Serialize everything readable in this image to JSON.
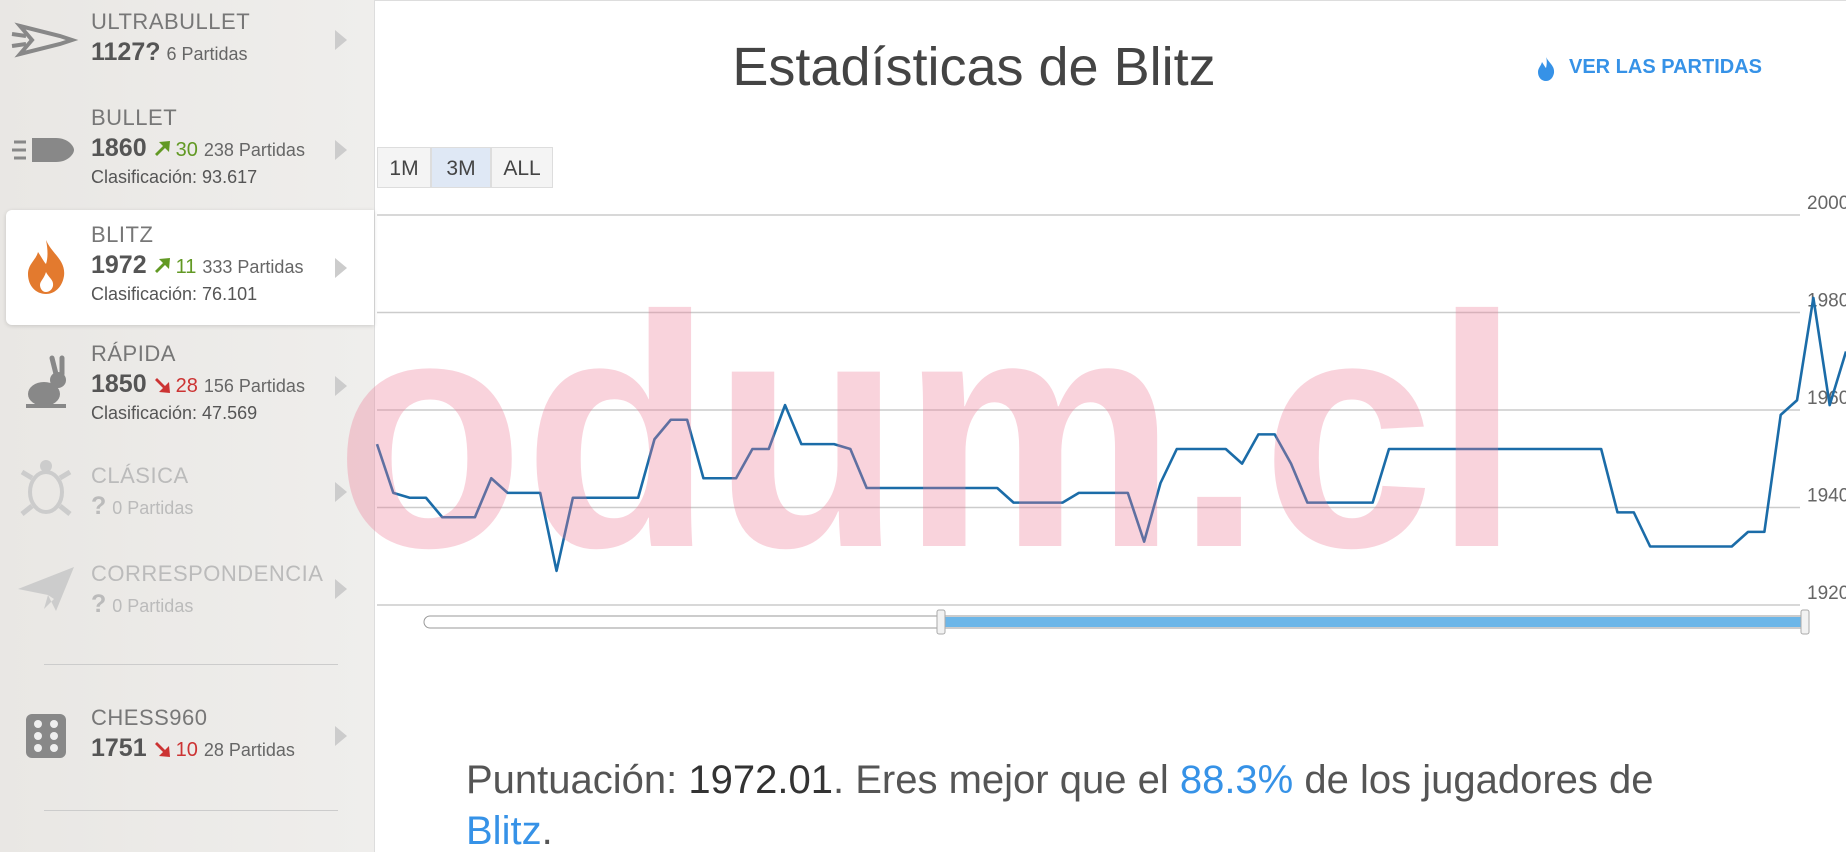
{
  "sidebar": {
    "items": [
      {
        "name": "ULTRABULLET",
        "rating": "1127?",
        "games": "6 Partidas"
      },
      {
        "name": "BULLET",
        "rating": "1860",
        "change": "30",
        "trend": "up",
        "games": "238 Partidas",
        "ranking": "Clasificación: 93.617"
      },
      {
        "name": "BLITZ",
        "rating": "1972",
        "change": "11",
        "trend": "up",
        "games": "333 Partidas",
        "ranking": "Clasificación: 76.101",
        "selected": true
      },
      {
        "name": "RÁPIDA",
        "rating": "1850",
        "change": "28",
        "trend": "down",
        "games": "156 Partidas",
        "ranking": "Clasificación: 47.569"
      },
      {
        "name": "CLÁSICA",
        "rating": "?",
        "games": "0 Partidas",
        "disabled": true
      },
      {
        "name": "CORRESPONDENCIA",
        "rating": "?",
        "games": "0 Partidas",
        "disabled": true
      },
      {
        "name": "CHESS960",
        "rating": "1751",
        "change": "10",
        "trend": "down",
        "games": "28 Partidas"
      }
    ]
  },
  "header": {
    "title": "Estadísticas de Blitz",
    "link": "VER LAS PARTIDAS"
  },
  "range_buttons": {
    "labels": [
      "1M",
      "3M",
      "ALL"
    ],
    "selected": "3M"
  },
  "chart_data": {
    "type": "line",
    "color": "#1b6ca8",
    "grid": true,
    "values": [
      1953,
      1943,
      1942,
      1942,
      1938,
      1938,
      1938,
      1946,
      1943,
      1943,
      1943,
      1927,
      1942,
      1942,
      1942,
      1942,
      1942,
      1954,
      1958,
      1958,
      1946,
      1946,
      1946,
      1952,
      1952,
      1961,
      1953,
      1953,
      1953,
      1952,
      1944,
      1944,
      1944,
      1944,
      1944,
      1944,
      1944,
      1944,
      1944,
      1941,
      1941,
      1941,
      1941,
      1943,
      1943,
      1943,
      1943,
      1933,
      1945,
      1952,
      1952,
      1952,
      1952,
      1949,
      1955,
      1955,
      1949,
      1941,
      1941,
      1941,
      1941,
      1941,
      1952,
      1952,
      1952,
      1952,
      1952,
      1952,
      1952,
      1952,
      1952,
      1952,
      1952,
      1952,
      1952,
      1952,
      1939,
      1939,
      1932,
      1932,
      1932,
      1932,
      1932,
      1932,
      1935,
      1935,
      1959,
      1962,
      1983,
      1961,
      1972
    ],
    "ylim": [
      1920,
      2000
    ],
    "yticks": [
      1920,
      1940,
      1960,
      1980,
      2000
    ]
  },
  "summary": {
    "label": "Puntuación:",
    "score": "1972.01",
    "text": ". Eres mejor que el",
    "percentile": "88.3%",
    "text2": "de los jugadores de",
    "variant": "Blitz",
    "end": "."
  },
  "watermark": "odum.cl"
}
